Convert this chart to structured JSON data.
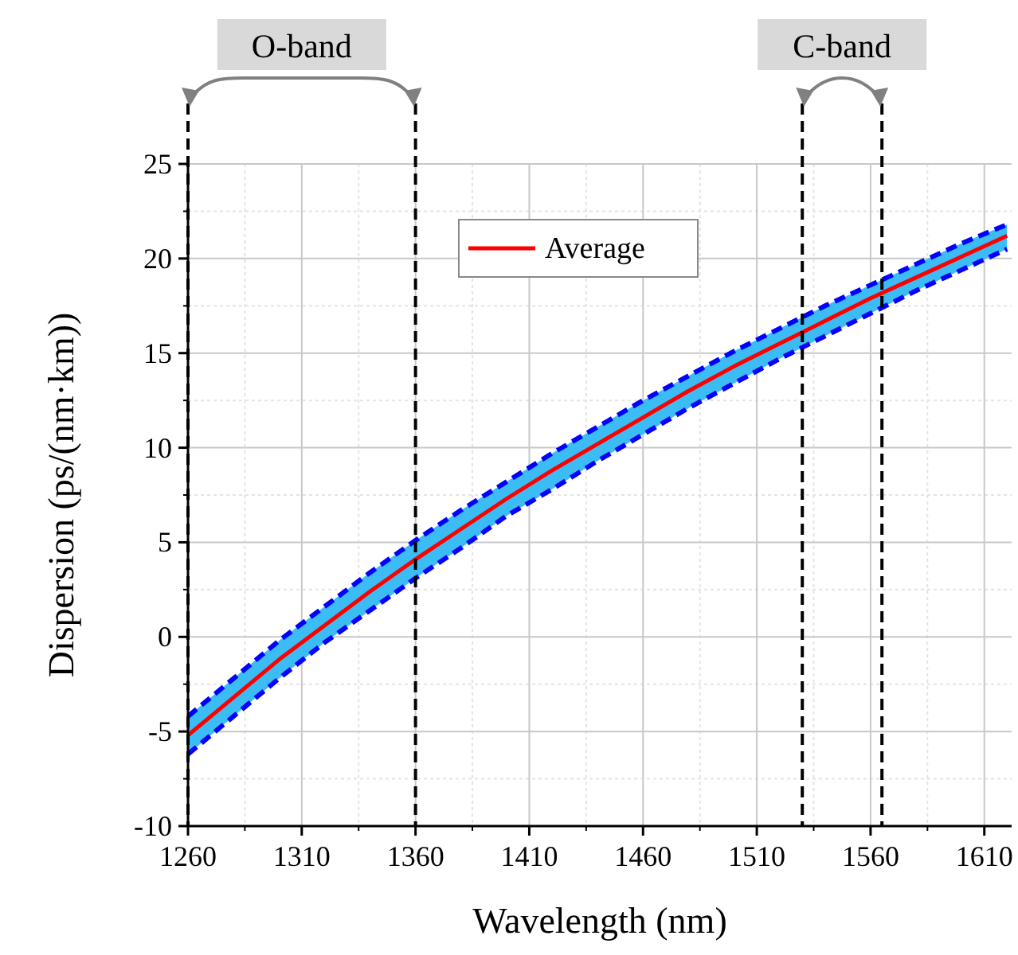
{
  "chart_data": {
    "type": "line",
    "xlabel": "Wavelength (nm)",
    "ylabel": "Dispersion (ps/(nm·km))",
    "x": [
      1260,
      1280,
      1300,
      1320,
      1340,
      1360,
      1380,
      1400,
      1420,
      1440,
      1460,
      1480,
      1500,
      1520,
      1540,
      1560,
      1580,
      1600,
      1620
    ],
    "series": [
      {
        "color": "#0000ff",
        "line_style": "dashed",
        "values": [
          -4.2,
          -2.2,
          -0.2,
          1.6,
          3.4,
          5.1,
          6.7,
          8.2,
          9.7,
          11.1,
          12.5,
          13.8,
          15.1,
          16.3,
          17.5,
          18.6,
          19.7,
          20.8,
          21.8
        ]
      },
      {
        "color": "#0000ff",
        "line_style": "dashed",
        "values": [
          -6.2,
          -4.2,
          -2.2,
          -0.3,
          1.4,
          3.1,
          4.7,
          6.4,
          7.8,
          9.3,
          10.7,
          12.1,
          13.4,
          14.7,
          15.9,
          17.1,
          18.3,
          19.4,
          20.5
        ]
      },
      {
        "name": "Average",
        "color": "#ff0000",
        "line_style": "solid",
        "values": [
          -5.2,
          -3.2,
          -1.2,
          0.6,
          2.4,
          4.1,
          5.7,
          7.3,
          8.8,
          10.2,
          11.6,
          13.0,
          14.3,
          15.5,
          16.7,
          17.9,
          19.0,
          20.1,
          21.2
        ],
        "lower": [
          -6.2,
          -4.2,
          -2.2,
          -0.3,
          1.4,
          3.1,
          4.7,
          6.4,
          7.8,
          9.3,
          10.7,
          12.1,
          13.4,
          14.7,
          15.9,
          17.1,
          18.3,
          19.4,
          20.5
        ],
        "upper": [
          -4.2,
          -2.2,
          -0.2,
          1.6,
          3.4,
          5.1,
          6.7,
          8.2,
          9.7,
          11.1,
          12.5,
          13.8,
          15.1,
          16.3,
          17.5,
          18.6,
          19.7,
          20.8,
          21.8
        ]
      }
    ],
    "xlim": [
      1260,
      1622
    ],
    "xticks": [
      1260,
      1310,
      1360,
      1410,
      1460,
      1510,
      1560,
      1610
    ],
    "ylim": [
      -10,
      25
    ],
    "yticks": [
      -10,
      -5,
      0,
      5,
      10,
      15,
      20,
      25
    ],
    "ref_lines": [
      {
        "axis": "x",
        "value": 1260,
        "line_style": "dashed",
        "color": "#000000"
      },
      {
        "axis": "x",
        "value": 1360,
        "line_style": "dashed",
        "color": "#000000"
      },
      {
        "axis": "x",
        "value": 1530,
        "line_style": "dashed",
        "color": "#000000"
      },
      {
        "axis": "x",
        "value": 1565,
        "line_style": "dashed",
        "color": "#000000"
      }
    ],
    "annotations": [
      "O-band",
      "C-band"
    ],
    "grid": true,
    "legend": "top",
    "marker": "none"
  }
}
